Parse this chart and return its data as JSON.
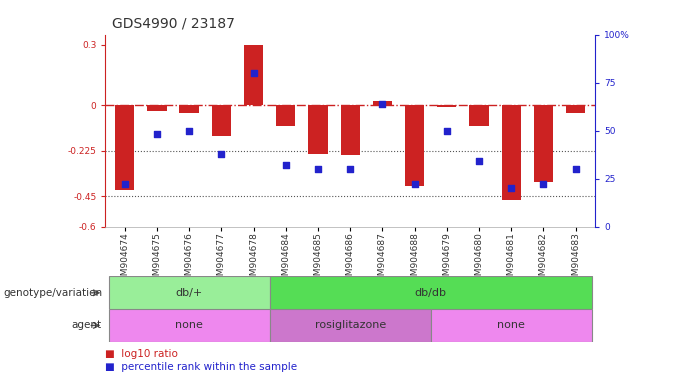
{
  "title": "GDS4990 / 23187",
  "samples": [
    "GSM904674",
    "GSM904675",
    "GSM904676",
    "GSM904677",
    "GSM904678",
    "GSM904684",
    "GSM904685",
    "GSM904686",
    "GSM904687",
    "GSM904688",
    "GSM904679",
    "GSM904680",
    "GSM904681",
    "GSM904682",
    "GSM904683"
  ],
  "log10_ratio": [
    -0.42,
    -0.03,
    -0.04,
    -0.15,
    0.3,
    -0.1,
    -0.24,
    -0.245,
    0.02,
    -0.4,
    -0.01,
    -0.1,
    -0.47,
    -0.38,
    -0.04
  ],
  "percentile": [
    22,
    48,
    50,
    38,
    80,
    32,
    30,
    30,
    64,
    22,
    50,
    34,
    20,
    22,
    30
  ],
  "ylim_left": [
    -0.6,
    0.35
  ],
  "ylim_right": [
    0,
    100
  ],
  "yticks_left": [
    -0.6,
    -0.45,
    -0.225,
    0,
    0.3
  ],
  "ytick_labels_left": [
    "-0.6",
    "-0.45",
    "-0.225",
    "0",
    "0.3"
  ],
  "yticks_right": [
    0,
    25,
    50,
    75,
    100
  ],
  "ytick_labels_right": [
    "0",
    "25",
    "50",
    "75",
    "100%"
  ],
  "bar_color": "#cc2222",
  "scatter_color": "#2222cc",
  "genotype_groups": [
    {
      "label": "db/+",
      "start": 0,
      "end": 5,
      "color": "#99ee99"
    },
    {
      "label": "db/db",
      "start": 5,
      "end": 15,
      "color": "#55dd55"
    }
  ],
  "agent_groups": [
    {
      "label": "none",
      "start": 0,
      "end": 5,
      "color": "#ee88ee"
    },
    {
      "label": "rosiglitazone",
      "start": 5,
      "end": 10,
      "color": "#cc77cc"
    },
    {
      "label": "none",
      "start": 10,
      "end": 15,
      "color": "#ee88ee"
    }
  ],
  "legend_bar_label": "log10 ratio",
  "legend_scatter_label": "percentile rank within the sample",
  "background_color": "#ffffff",
  "title_fontsize": 10,
  "tick_fontsize": 6.5,
  "label_fontsize": 8,
  "annot_label_fontsize": 7.5
}
